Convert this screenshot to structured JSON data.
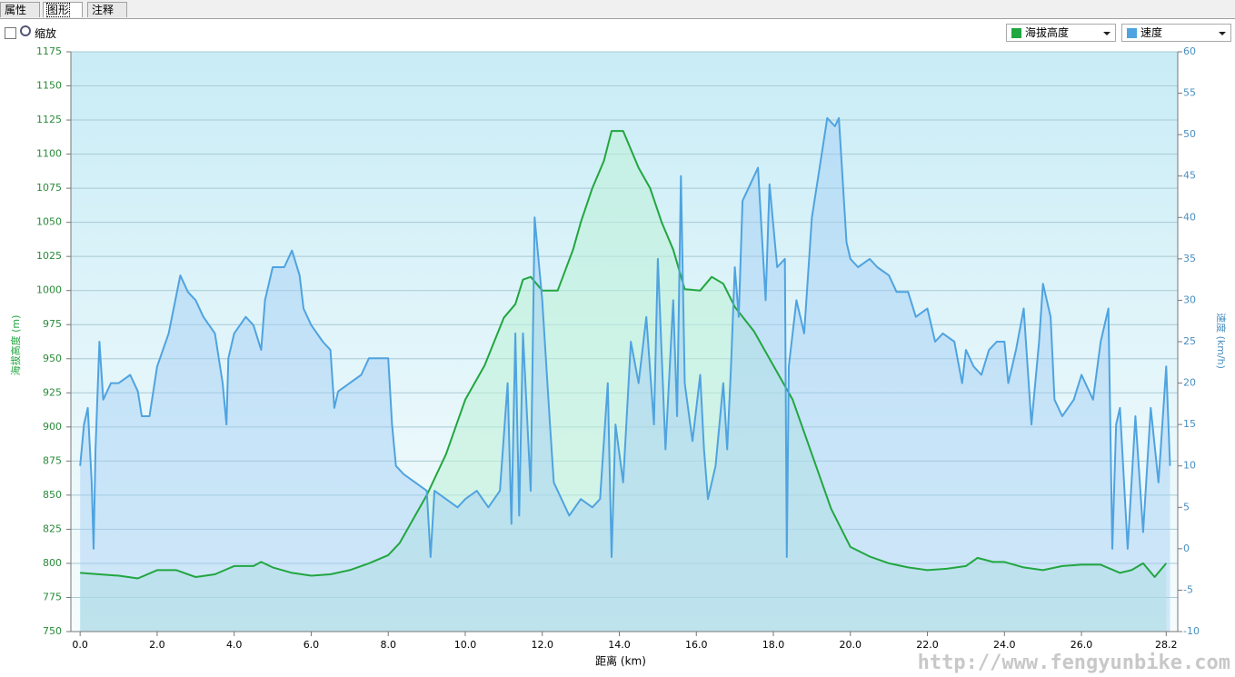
{
  "ui": {
    "tabs": [
      "属性",
      "图形",
      "注释"
    ],
    "zoom_label": "缩放",
    "watermark": "http://www.fengyunbike.com"
  },
  "chart_data": {
    "type": "area",
    "xlabel": "距离 (km)",
    "ylabel": "海拔高度 (m)",
    "y2label": "速度 (km/h)",
    "xlim": [
      -0.24,
      28.5
    ],
    "xticks": [
      {
        "value": 0,
        "label": "0.0"
      },
      {
        "value": 2,
        "label": "2.0"
      },
      {
        "value": 4,
        "label": "4.0"
      },
      {
        "value": 6,
        "label": "6.0"
      },
      {
        "value": 8,
        "label": "8.0"
      },
      {
        "value": 10,
        "label": "10.0"
      },
      {
        "value": 12,
        "label": "12.0"
      },
      {
        "value": 14,
        "label": "14.0"
      },
      {
        "value": 16,
        "label": "16.0"
      },
      {
        "value": 18,
        "label": "18.0"
      },
      {
        "value": 20,
        "label": "20.0"
      },
      {
        "value": 22,
        "label": "22.0"
      },
      {
        "value": 24,
        "label": "24.0"
      },
      {
        "value": 26,
        "label": "26.0"
      },
      28.2
    ],
    "ylim": [
      750,
      1175
    ],
    "yticks": [
      750,
      775,
      800,
      825,
      850,
      875,
      900,
      925,
      950,
      975,
      1000,
      1025,
      1050,
      1075,
      1100,
      1125,
      1150,
      1175
    ],
    "y2lim": [
      -10,
      60
    ],
    "y2ticks": [
      -10,
      -5,
      0,
      5,
      10,
      15,
      20,
      25,
      30,
      35,
      40,
      45,
      50,
      55,
      60
    ],
    "grid": true,
    "series": [
      {
        "name": "海拔高度",
        "color": "#22a640",
        "axis": "y",
        "x": [
          0,
          0.5,
          1,
          1.5,
          2,
          2.5,
          3,
          3.5,
          4,
          4.5,
          4.7,
          5,
          5.5,
          6,
          6.5,
          7,
          7.5,
          8,
          8.3,
          8.6,
          9,
          9.5,
          10,
          10.5,
          11,
          11.3,
          11.5,
          11.7,
          12,
          12.4,
          12.8,
          13,
          13.3,
          13.6,
          13.8,
          14.1,
          14.5,
          14.8,
          15.1,
          15.4,
          15.7,
          16.1,
          16.4,
          16.7,
          17,
          17.5,
          18,
          18.5,
          19,
          19.5,
          20,
          20.5,
          21,
          21.5,
          22,
          22.5,
          23,
          23.3,
          23.7,
          24,
          24.5,
          25,
          25.5,
          26,
          26.5,
          27,
          27.3,
          27.6,
          27.9,
          28.2
        ],
        "values": [
          793,
          792,
          791,
          789,
          795,
          795,
          790,
          792,
          798,
          798,
          801,
          797,
          793,
          791,
          792,
          795,
          800,
          806,
          815,
          830,
          850,
          880,
          920,
          945,
          980,
          990,
          1008,
          1010,
          1000,
          1000,
          1030,
          1050,
          1075,
          1095,
          1117,
          1117,
          1090,
          1075,
          1050,
          1030,
          1001,
          1000,
          1010,
          1005,
          988,
          970,
          945,
          920,
          880,
          840,
          812,
          805,
          800,
          797,
          795,
          796,
          798,
          804,
          801,
          801,
          797,
          795,
          798,
          799,
          799,
          793,
          795,
          800,
          790,
          800
        ]
      },
      {
        "name": "速度",
        "color": "#4fa3e0",
        "axis": "y2",
        "x": [
          0,
          0.1,
          0.2,
          0.3,
          0.35,
          0.4,
          0.5,
          0.6,
          0.8,
          1.0,
          1.3,
          1.5,
          1.6,
          1.8,
          2.0,
          2.3,
          2.6,
          2.8,
          3.0,
          3.2,
          3.5,
          3.7,
          3.8,
          3.85,
          4.0,
          4.3,
          4.5,
          4.7,
          4.8,
          5.0,
          5.3,
          5.5,
          5.7,
          5.8,
          6.0,
          6.3,
          6.5,
          6.6,
          6.7,
          7.0,
          7.3,
          7.5,
          8.0,
          8.1,
          8.2,
          8.4,
          8.7,
          9.0,
          9.1,
          9.2,
          9.5,
          9.8,
          10.0,
          10.3,
          10.6,
          10.9,
          11.1,
          11.2,
          11.3,
          11.4,
          11.5,
          11.7,
          11.8,
          12.0,
          12.2,
          12.3,
          12.5,
          12.7,
          13.0,
          13.3,
          13.5,
          13.7,
          13.8,
          13.9,
          14.1,
          14.3,
          14.5,
          14.7,
          14.9,
          15.0,
          15.2,
          15.4,
          15.5,
          15.6,
          15.7,
          15.9,
          16.1,
          16.2,
          16.3,
          16.5,
          16.7,
          16.8,
          16.9,
          17.0,
          17.1,
          17.2,
          17.4,
          17.6,
          17.8,
          17.9,
          18.1,
          18.3,
          18.35,
          18.4,
          18.6,
          18.8,
          19.0,
          19.2,
          19.4,
          19.6,
          19.7,
          19.9,
          20.0,
          20.2,
          20.5,
          20.7,
          21.0,
          21.2,
          21.5,
          21.7,
          22.0,
          22.2,
          22.4,
          22.7,
          22.9,
          23.0,
          23.2,
          23.4,
          23.6,
          23.8,
          24.0,
          24.1,
          24.3,
          24.5,
          24.7,
          24.9,
          25.0,
          25.2,
          25.3,
          25.5,
          25.8,
          26.0,
          26.3,
          26.5,
          26.7,
          26.8,
          26.9,
          27.0,
          27.2,
          27.4,
          27.6,
          27.8,
          28.0,
          28.2,
          28.3
        ],
        "values": [
          10,
          15,
          17,
          8,
          0,
          12,
          25,
          18,
          20,
          20,
          21,
          19,
          16,
          16,
          22,
          26,
          33,
          31,
          30,
          28,
          26,
          20,
          15,
          23,
          26,
          28,
          27,
          24,
          30,
          34,
          34,
          36,
          33,
          29,
          27,
          25,
          24,
          17,
          19,
          20,
          21,
          23,
          23,
          15,
          10,
          9,
          8,
          7,
          -1,
          7,
          6,
          5,
          6,
          7,
          5,
          7,
          20,
          3,
          26,
          4,
          26,
          7,
          40,
          30,
          15,
          8,
          6,
          4,
          6,
          5,
          6,
          20,
          -1,
          15,
          8,
          25,
          20,
          28,
          15,
          35,
          12,
          30,
          16,
          45,
          20,
          13,
          21,
          12,
          6,
          10,
          20,
          12,
          22,
          34,
          28,
          42,
          44,
          46,
          30,
          44,
          34,
          35,
          -1,
          22,
          30,
          26,
          40,
          46,
          52,
          51,
          52,
          37,
          35,
          34,
          35,
          34,
          33,
          31,
          31,
          28,
          29,
          25,
          26,
          25,
          20,
          24,
          22,
          21,
          24,
          25,
          25,
          20,
          24,
          29,
          15,
          25,
          32,
          28,
          18,
          16,
          18,
          21,
          18,
          25,
          29,
          0,
          15,
          17,
          0,
          16,
          2,
          17,
          8,
          22,
          10
        ]
      }
    ]
  }
}
